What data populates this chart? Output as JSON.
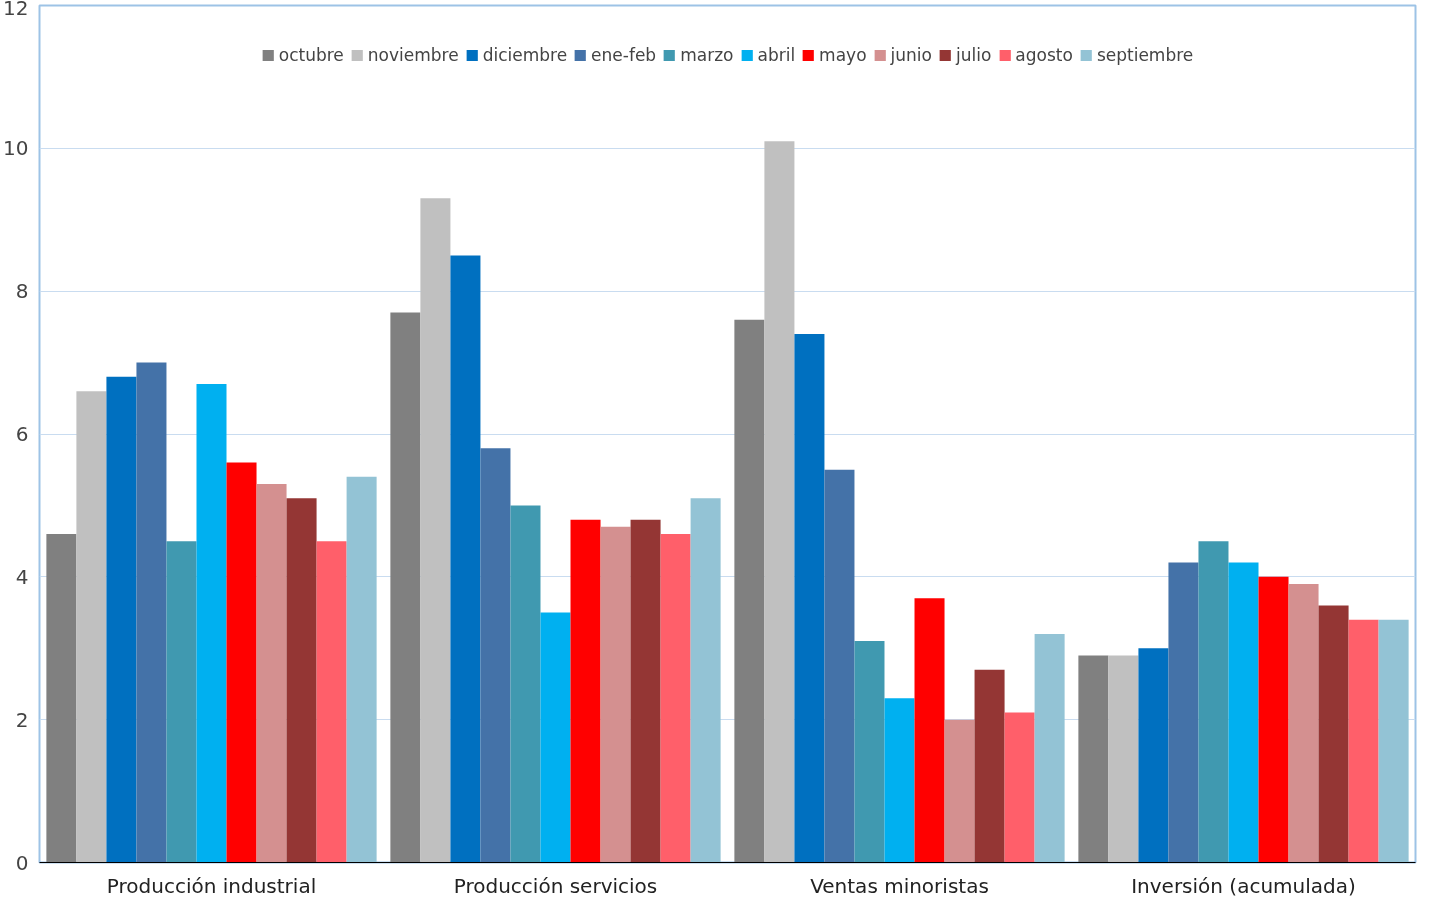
{
  "chart_data": {
    "type": "bar",
    "categories": [
      "Producción industrial",
      "Producción servicios",
      "Ventas minoristas",
      "Inversión (acumulada)"
    ],
    "series": [
      {
        "name": "octubre",
        "color": "#808080",
        "values": [
          4.6,
          7.7,
          7.6,
          2.9
        ]
      },
      {
        "name": "noviembre",
        "color": "#c0c0c0",
        "values": [
          6.6,
          9.3,
          10.1,
          2.9
        ]
      },
      {
        "name": "diciembre",
        "color": "#0070c0",
        "values": [
          6.8,
          8.5,
          7.4,
          3.0
        ]
      },
      {
        "name": "ene-feb",
        "color": "#4472a8",
        "values": [
          7.0,
          5.8,
          5.5,
          4.2
        ]
      },
      {
        "name": "marzo",
        "color": "#4099b0",
        "values": [
          4.5,
          5.0,
          3.1,
          4.5
        ]
      },
      {
        "name": "abril",
        "color": "#00b0f0",
        "values": [
          6.7,
          3.5,
          2.3,
          4.2
        ]
      },
      {
        "name": "mayo",
        "color": "#ff0000",
        "values": [
          5.6,
          4.8,
          3.7,
          4.0
        ]
      },
      {
        "name": "junio",
        "color": "#d49090",
        "values": [
          5.3,
          4.7,
          2.0,
          3.9
        ]
      },
      {
        "name": "julio",
        "color": "#943634",
        "values": [
          5.1,
          4.8,
          2.7,
          3.6
        ]
      },
      {
        "name": "agosto",
        "color": "#ff5f6a",
        "values": [
          4.5,
          4.6,
          2.1,
          3.4
        ]
      },
      {
        "name": "septiembre",
        "color": "#93c3d5",
        "values": [
          5.4,
          5.1,
          3.2,
          3.4
        ]
      }
    ],
    "ylim": [
      0,
      12
    ],
    "yticks": [
      0,
      2,
      4,
      6,
      8,
      10,
      12
    ],
    "grid": "y",
    "legend": "top"
  }
}
